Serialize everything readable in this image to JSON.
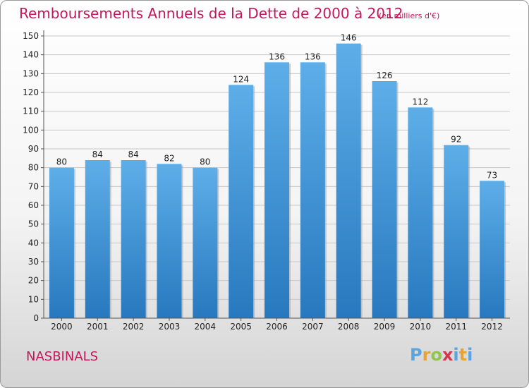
{
  "chart_data": {
    "type": "bar",
    "title": "Remboursements Annuels de la Dette de 2000 à 2012",
    "subtitle": "(en milliers d'€)",
    "categories": [
      "2000",
      "2001",
      "2002",
      "2003",
      "2004",
      "2005",
      "2006",
      "2007",
      "2008",
      "2009",
      "2010",
      "2011",
      "2012"
    ],
    "values": [
      80,
      84,
      84,
      82,
      80,
      124,
      136,
      136,
      146,
      126,
      112,
      92,
      73
    ],
    "ylim": [
      0,
      150
    ],
    "yticks": [
      0,
      10,
      20,
      30,
      40,
      50,
      60,
      70,
      80,
      90,
      100,
      110,
      120,
      130,
      140,
      150
    ],
    "grid": true,
    "bar_color": "#3a8fd6"
  },
  "footer": {
    "place": "NASBINALS",
    "logo": {
      "p": "P",
      "r": "r",
      "o": "o",
      "x": "x",
      "i": "i",
      "t": "t",
      "i2": "i"
    }
  }
}
